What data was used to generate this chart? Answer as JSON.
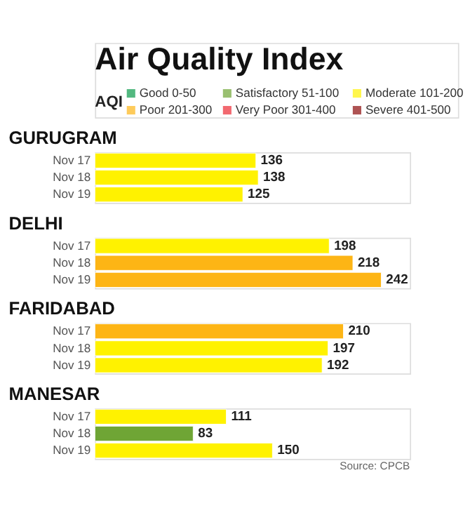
{
  "chart_data": [
    {
      "type": "other",
      "title": "Air Quality Index",
      "legend_title": "AQI",
      "categories": [
        "Good 0-50",
        "Satisfactory 51-100",
        "Moderate 101-200",
        "Poor 201-300",
        "Very Poor 301-400",
        "Severe 401-500"
      ],
      "colors": [
        "#0a9a4a",
        "#6fa535",
        "#fff200",
        "#fdb515",
        "#ec2a33",
        "#8b0a0a"
      ]
    },
    {
      "type": "bar",
      "orientation": "horizontal",
      "title": "GURUGRAM",
      "categories": [
        "Nov 17",
        "Nov 18",
        "Nov 19"
      ],
      "values": [
        136,
        138,
        125
      ],
      "colors": [
        "#fff200",
        "#fff200",
        "#fff200"
      ],
      "data_labels": true
    },
    {
      "type": "bar",
      "orientation": "horizontal",
      "title": "DELHI",
      "categories": [
        "Nov 17",
        "Nov 18",
        "Nov 19"
      ],
      "values": [
        198,
        218,
        242
      ],
      "colors": [
        "#fff200",
        "#fdb515",
        "#fdb515"
      ],
      "data_labels": true
    },
    {
      "type": "bar",
      "orientation": "horizontal",
      "title": "FARIDABAD",
      "categories": [
        "Nov 17",
        "Nov 18",
        "Nov 19"
      ],
      "values": [
        210,
        197,
        192
      ],
      "colors": [
        "#fdb515",
        "#fff200",
        "#fff200"
      ],
      "data_labels": true
    },
    {
      "type": "bar",
      "orientation": "horizontal",
      "title": "MANESAR",
      "categories": [
        "Nov 17",
        "Nov 18",
        "Nov 19"
      ],
      "values": [
        111,
        83,
        150
      ],
      "colors": [
        "#fff200",
        "#6fa535",
        "#fff200"
      ],
      "data_labels": true,
      "annotations": [
        "Source: CPCB"
      ]
    }
  ]
}
